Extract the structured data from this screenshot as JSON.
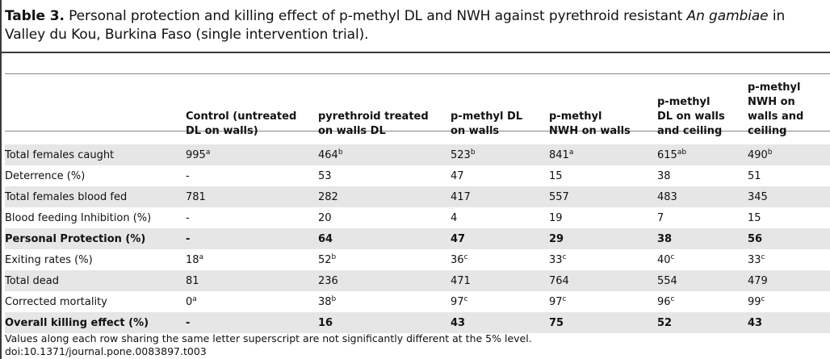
{
  "caption": {
    "label": "Table 3.",
    "text_before_italic": " Personal protection and killing effect of p-methyl DL and NWH against pyrethroid resistant ",
    "italic": "An gambiae",
    "text_after_italic": " in Valley du Kou, Burkina Faso (single intervention trial)."
  },
  "table": {
    "headers": [
      "",
      "Control (untreated DL on walls)",
      "pyrethroid treated on walls DL",
      "p-methyl DL on walls",
      "p-methyl NWH on walls",
      "p-methyl DL on walls and ceiling",
      "p-methyl NWH on walls and ceiling"
    ],
    "rows": [
      {
        "label": "Total females caught",
        "shade": true,
        "bold": false,
        "cells": [
          {
            "v": "995",
            "sup": "a"
          },
          {
            "v": "464",
            "sup": "b"
          },
          {
            "v": "523",
            "sup": "b"
          },
          {
            "v": "841",
            "sup": "a"
          },
          {
            "v": "615",
            "sup": "ab"
          },
          {
            "v": "490",
            "sup": "b"
          }
        ]
      },
      {
        "label": "Deterrence (%)",
        "shade": false,
        "bold": false,
        "cells": [
          {
            "v": "-"
          },
          {
            "v": "53"
          },
          {
            "v": "47"
          },
          {
            "v": "15"
          },
          {
            "v": "38"
          },
          {
            "v": "51"
          }
        ]
      },
      {
        "label": "Total females blood fed",
        "shade": true,
        "bold": false,
        "cells": [
          {
            "v": "781"
          },
          {
            "v": "282"
          },
          {
            "v": "417"
          },
          {
            "v": "557"
          },
          {
            "v": "483"
          },
          {
            "v": "345"
          }
        ]
      },
      {
        "label": "Blood feeding Inhibition (%)",
        "shade": false,
        "bold": false,
        "cells": [
          {
            "v": "-"
          },
          {
            "v": "20"
          },
          {
            "v": "4"
          },
          {
            "v": "19"
          },
          {
            "v": "7"
          },
          {
            "v": "15"
          }
        ]
      },
      {
        "label": "Personal Protection (%)",
        "shade": true,
        "bold": true,
        "cells": [
          {
            "v": "-"
          },
          {
            "v": "64"
          },
          {
            "v": "47"
          },
          {
            "v": "29"
          },
          {
            "v": "38"
          },
          {
            "v": "56"
          }
        ]
      },
      {
        "label": "Exiting rates (%)",
        "shade": false,
        "bold": false,
        "cells": [
          {
            "v": "18",
            "sup": "a"
          },
          {
            "v": "52",
            "sup": "b"
          },
          {
            "v": "36",
            "sup": "c"
          },
          {
            "v": "33",
            "sup": "c"
          },
          {
            "v": "40",
            "sup": "c"
          },
          {
            "v": "33",
            "sup": "c"
          }
        ]
      },
      {
        "label": "Total dead",
        "shade": true,
        "bold": false,
        "cells": [
          {
            "v": "81"
          },
          {
            "v": "236"
          },
          {
            "v": "471"
          },
          {
            "v": "764"
          },
          {
            "v": "554"
          },
          {
            "v": "479"
          }
        ]
      },
      {
        "label": "Corrected mortality",
        "shade": false,
        "bold": false,
        "cells": [
          {
            "v": "0",
            "sup": "a"
          },
          {
            "v": "38",
            "sup": "b"
          },
          {
            "v": "97",
            "sup": "c"
          },
          {
            "v": "97",
            "sup": "c"
          },
          {
            "v": "96",
            "sup": "c"
          },
          {
            "v": "99",
            "sup": "c"
          }
        ]
      },
      {
        "label": "Overall killing effect (%)",
        "shade": true,
        "bold": true,
        "cells": [
          {
            "v": "-"
          },
          {
            "v": "16"
          },
          {
            "v": "43"
          },
          {
            "v": "75"
          },
          {
            "v": "52"
          },
          {
            "v": "43"
          }
        ]
      }
    ]
  },
  "footer": {
    "note": "Values along each row sharing the same letter superscript are not significantly different at the 5% level.",
    "doi": "doi:10.1371/journal.pone.0083897.t003"
  }
}
